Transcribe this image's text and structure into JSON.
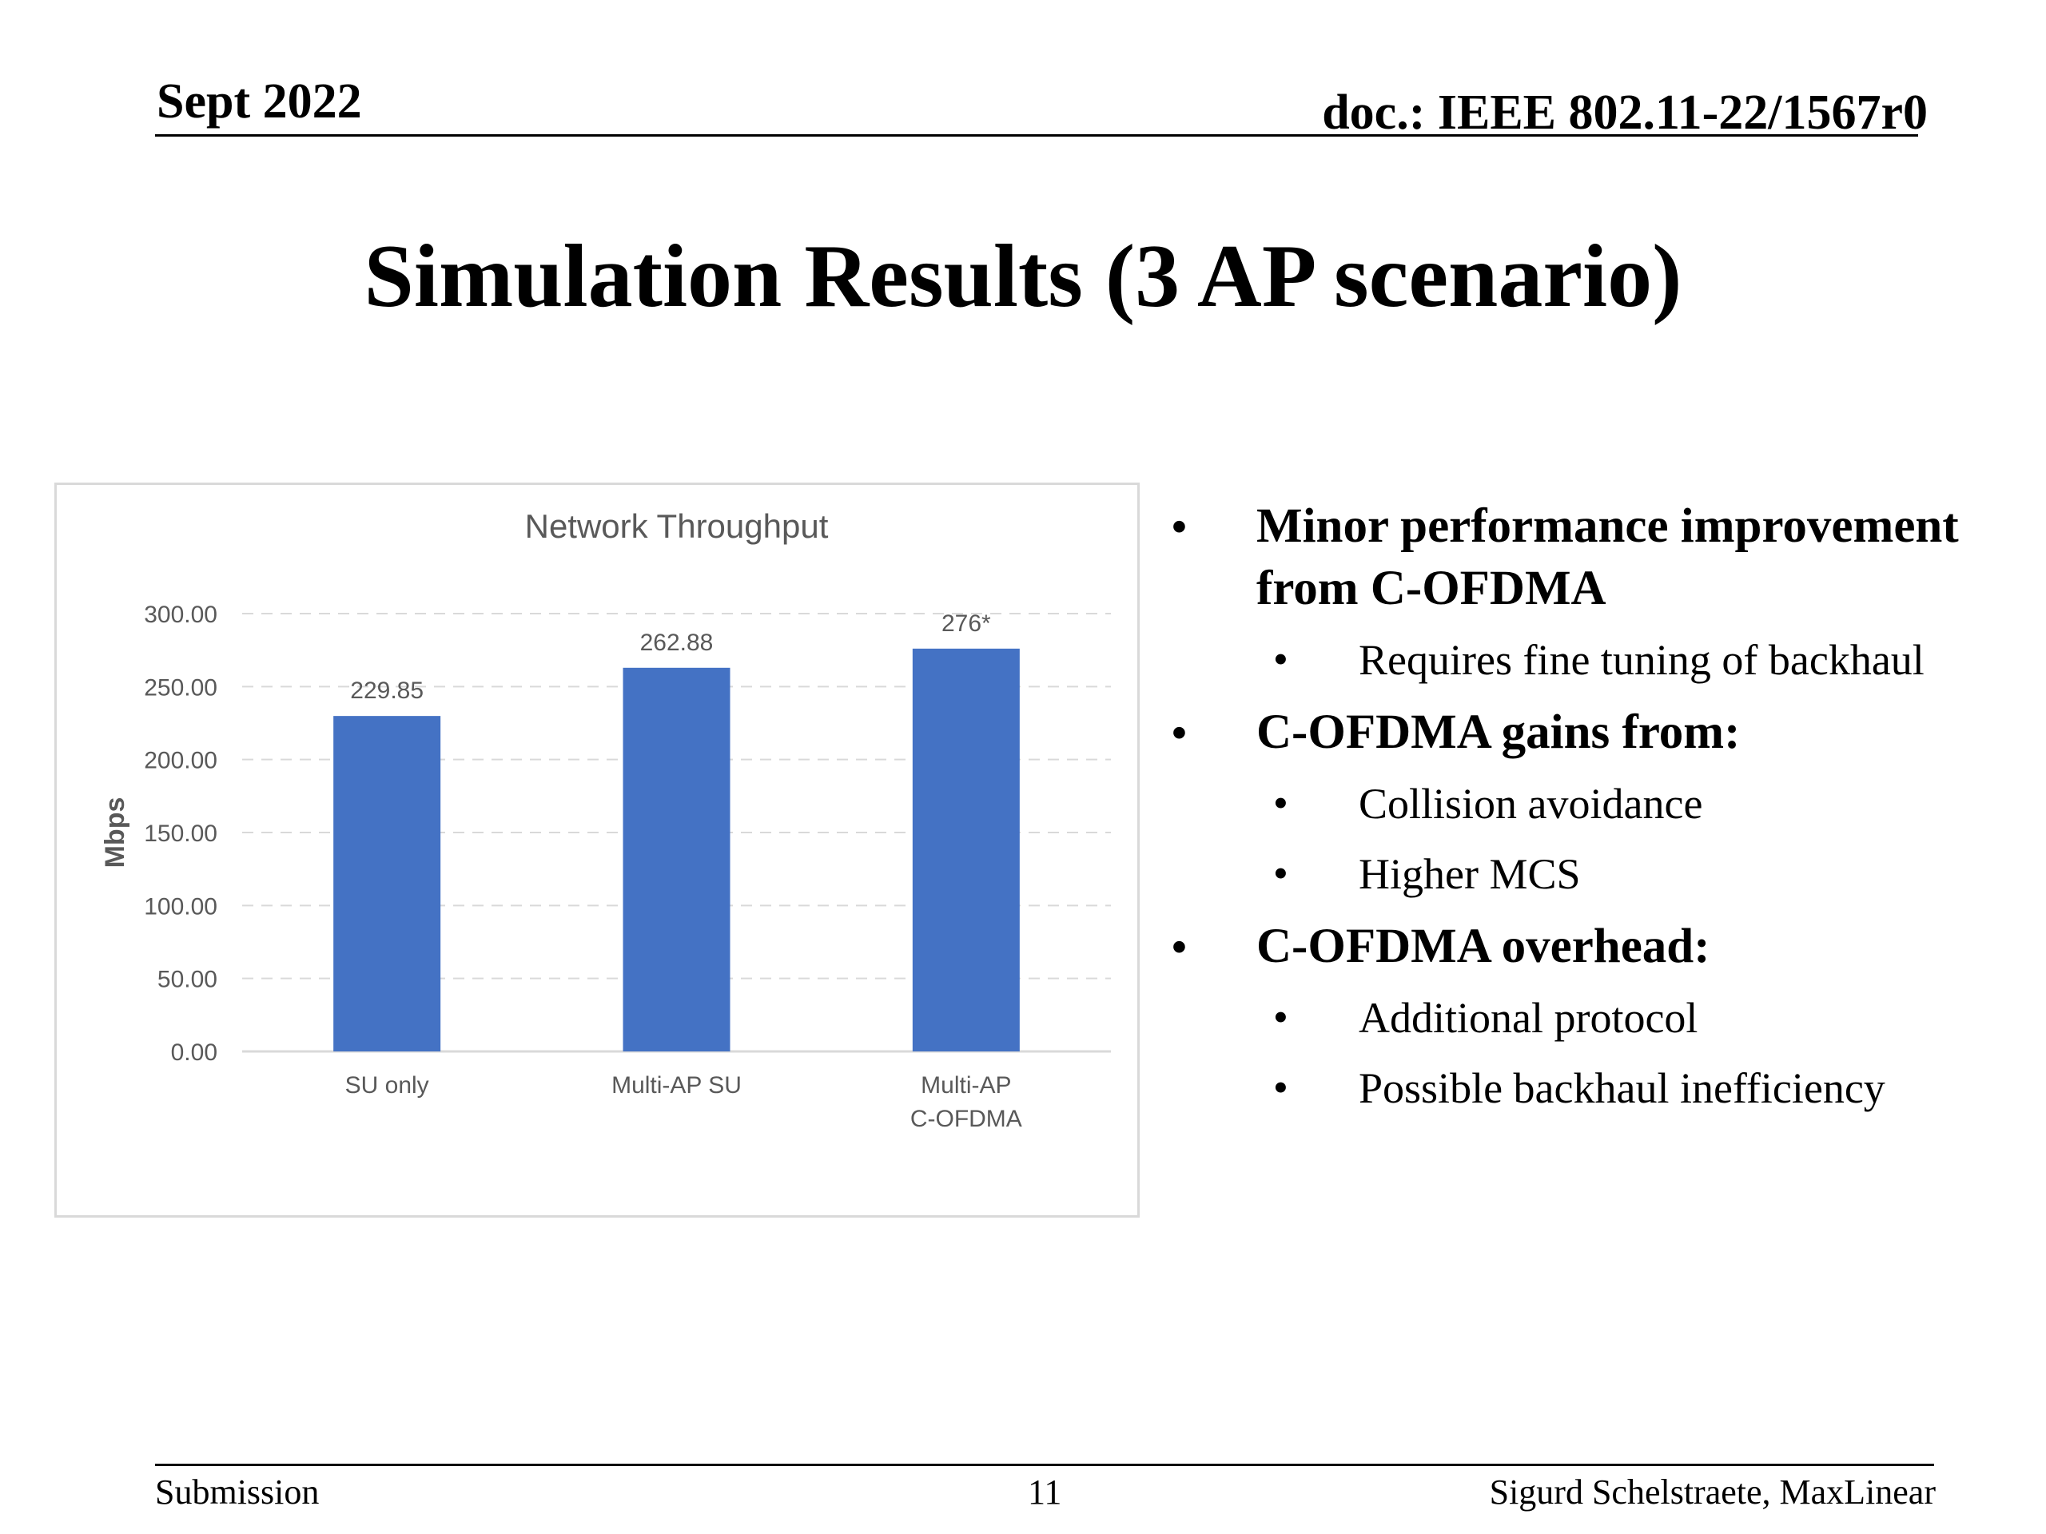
{
  "header": {
    "date": "Sept 2022",
    "doc": "doc.: IEEE 802.11-22/1567r0"
  },
  "slide": {
    "title": "Simulation Results (3 AP scenario)"
  },
  "bullets": [
    {
      "text": "Minor performance improvement from C-OFDMA",
      "sub": [
        "Requires fine tuning of backhaul"
      ]
    },
    {
      "text": "C-OFDMA gains from:",
      "sub": [
        "Collision avoidance",
        "Higher MCS"
      ]
    },
    {
      "text": "C-OFDMA overhead:",
      "sub": [
        "Additional protocol",
        "Possible backhaul inefficiency"
      ]
    }
  ],
  "footer": {
    "left": "Submission",
    "page": "11",
    "right": "Sigurd Schelstraete, MaxLinear"
  },
  "chart_data": {
    "type": "bar",
    "title": "Network Throughput",
    "ylabel": "Mbps",
    "xlabel": "",
    "categories": [
      [
        "SU only"
      ],
      [
        "Multi-AP SU"
      ],
      [
        "Multi-AP",
        "C-OFDMA"
      ]
    ],
    "values": [
      229.85,
      262.88,
      276
    ],
    "data_labels": [
      "229.85",
      "262.88",
      "276*"
    ],
    "yticks": [
      "0.00",
      "50.00",
      "100.00",
      "150.00",
      "200.00",
      "250.00",
      "300.00"
    ],
    "ylim": [
      0,
      300
    ],
    "grid": true,
    "bar_color": "#4472c4",
    "grid_color": "#d9d9d9",
    "text_color": "#595959"
  }
}
